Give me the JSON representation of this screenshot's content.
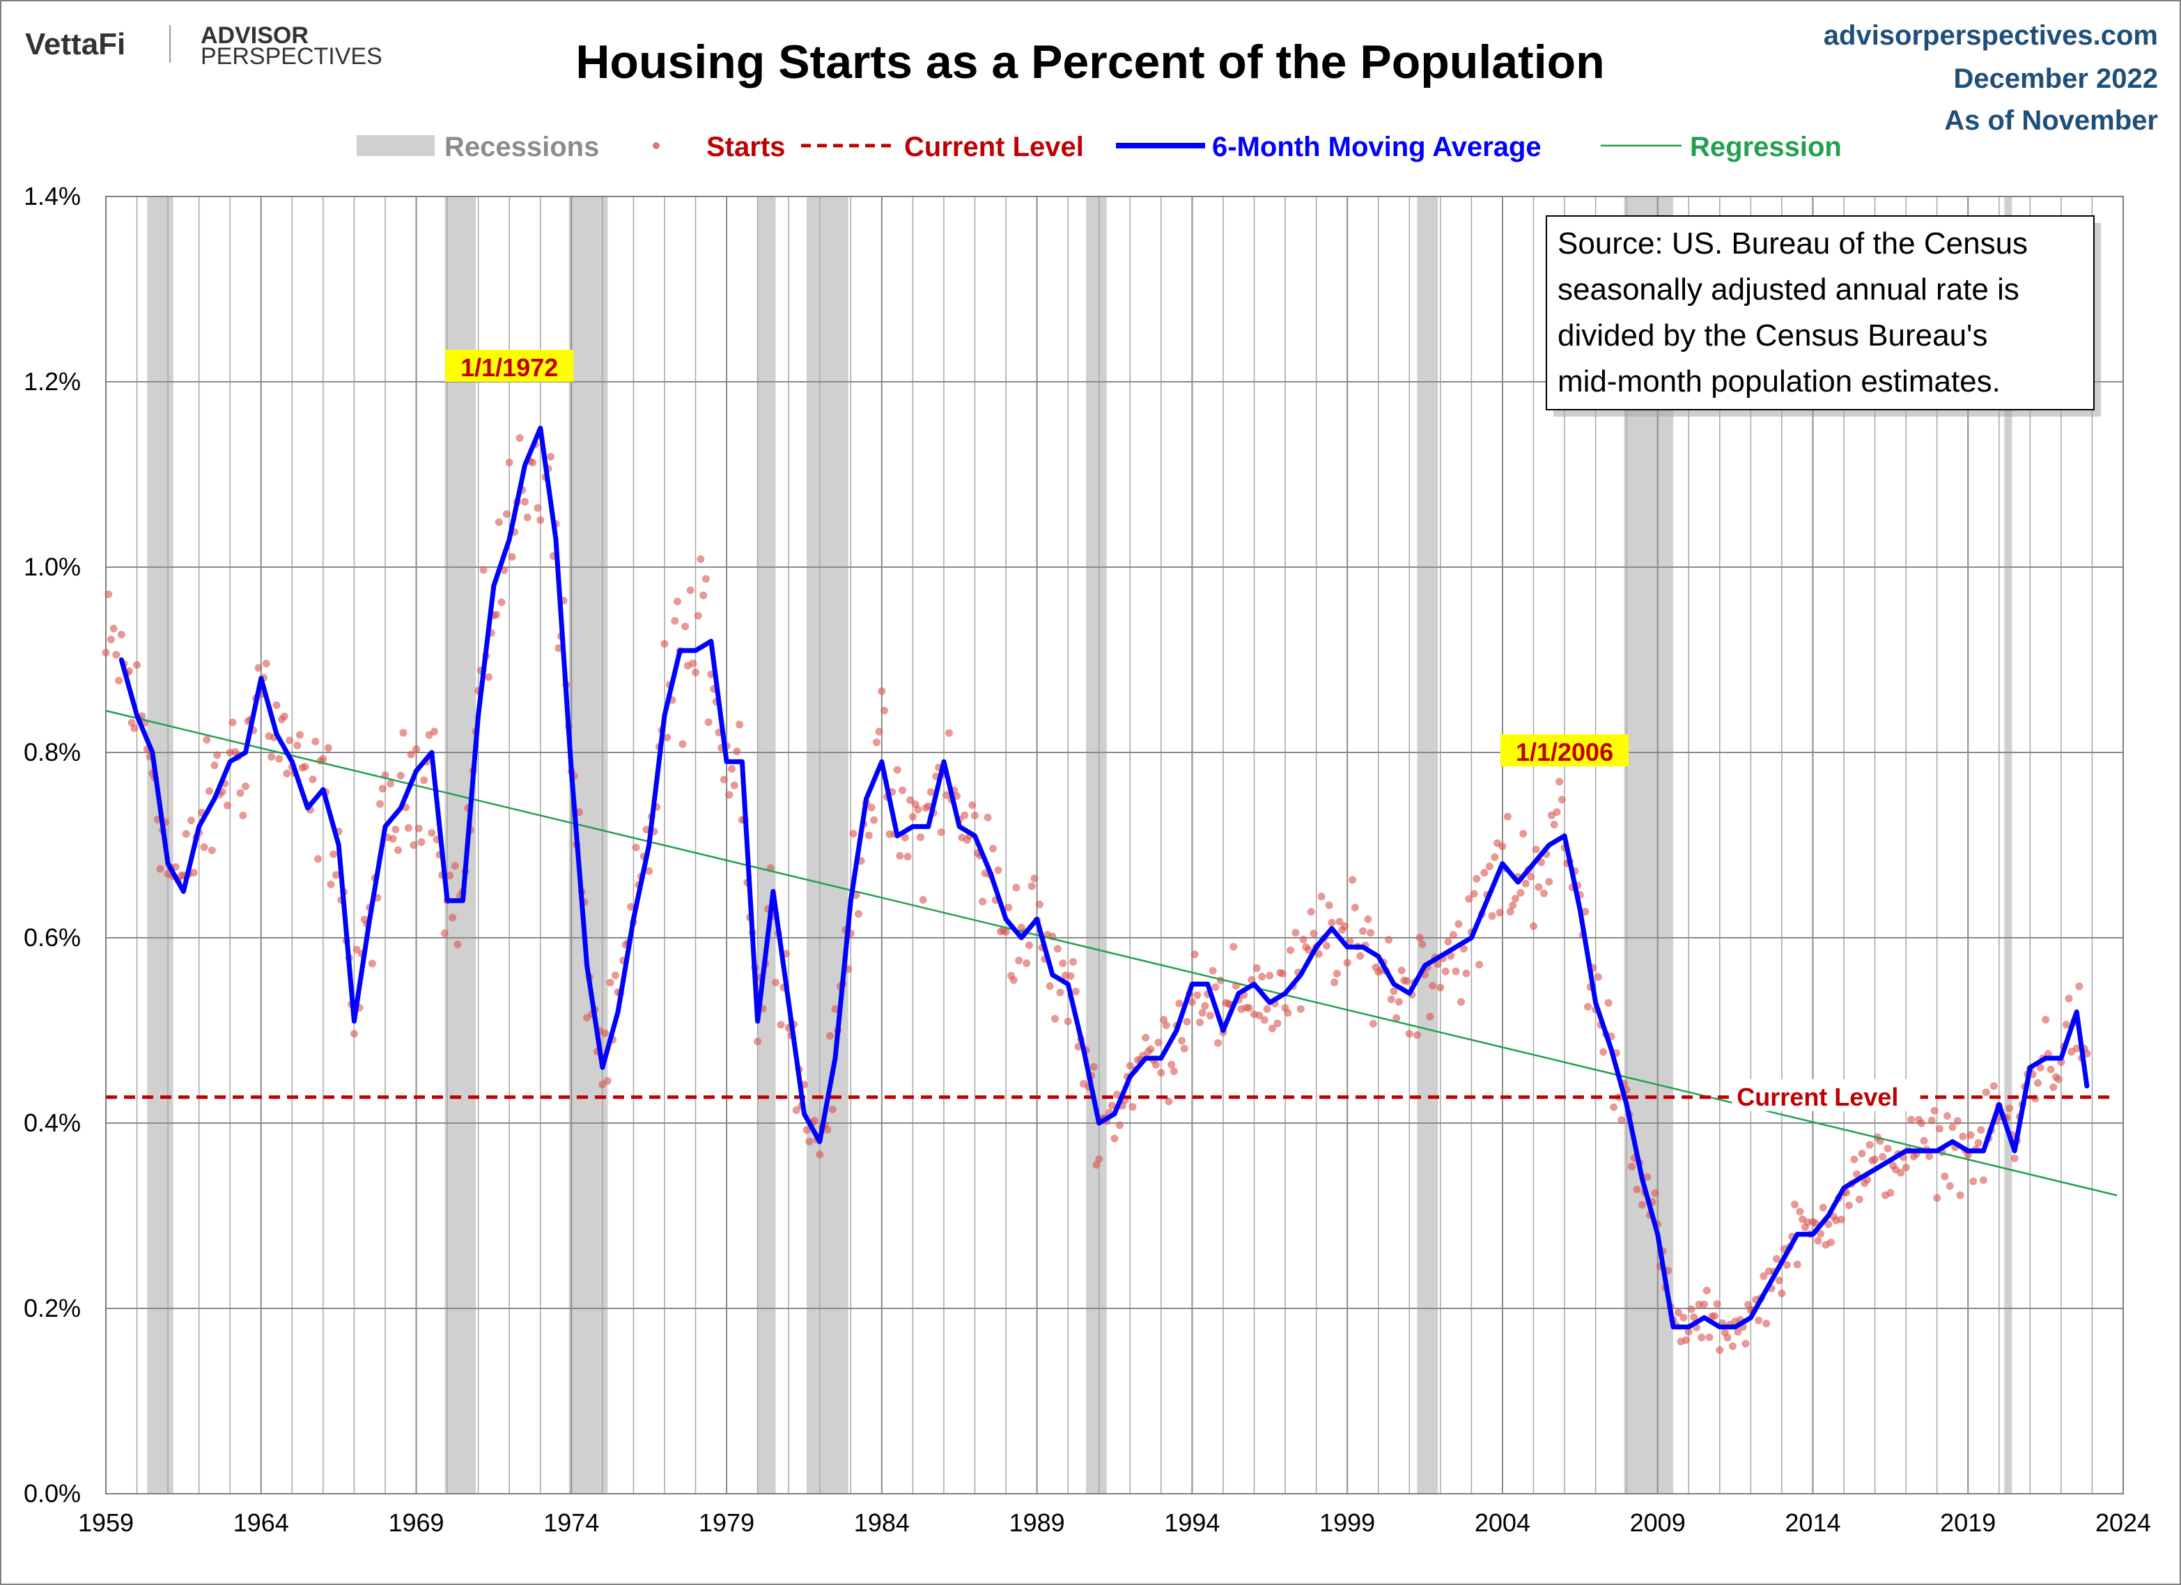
{
  "header": {
    "logo_primary": "VettaFi",
    "logo_secondary_1": "ADVISOR",
    "logo_secondary_2": "PERSPECTIVES",
    "site": "advisorperspectives.com",
    "date": "December 2022",
    "as_of": "As of November"
  },
  "chart_data": {
    "type": "scatter",
    "title": "Housing Starts as a Percent of the Population",
    "xlabel": "",
    "ylabel": "",
    "xlim": [
      1959,
      2024
    ],
    "ylim": [
      0,
      1.4
    ],
    "x_ticks": [
      "1959",
      "1964",
      "1969",
      "1974",
      "1979",
      "1984",
      "1989",
      "1994",
      "1999",
      "2004",
      "2009",
      "2014",
      "2019",
      "2024"
    ],
    "y_ticks": [
      "0.0%",
      "0.2%",
      "0.4%",
      "0.6%",
      "0.8%",
      "1.0%",
      "1.2%",
      "1.4%"
    ],
    "grid": true,
    "legend": {
      "position": "top",
      "items": [
        {
          "label": "Recessions",
          "color": "#d0d0d0",
          "text_color": "#8c8c8c",
          "kind": "band"
        },
        {
          "label": "Starts",
          "color": "#d9534f",
          "text_color": "#c00000",
          "kind": "dot"
        },
        {
          "label": "Current Level",
          "color": "#c00000",
          "text_color": "#c00000",
          "kind": "dash"
        },
        {
          "label": "6-Month Moving Average",
          "color": "#0000ff",
          "text_color": "#0000ff",
          "kind": "line"
        },
        {
          "label": "Regression",
          "color": "#22a050",
          "text_color": "#22a050",
          "kind": "thin"
        }
      ]
    },
    "recessions": [
      [
        1960.33,
        1961.17
      ],
      [
        1969.92,
        1970.92
      ],
      [
        1973.92,
        1975.17
      ],
      [
        1980.0,
        1980.58
      ],
      [
        1981.58,
        1982.92
      ],
      [
        1990.58,
        1991.25
      ],
      [
        2001.25,
        2001.92
      ],
      [
        2007.92,
        2009.5
      ],
      [
        2020.17,
        2020.42
      ]
    ],
    "moving_average": {
      "name": "6-Month Moving Average",
      "color": "#0000ff",
      "x": [
        1959.5,
        1960.0,
        1960.5,
        1961.0,
        1961.5,
        1962.0,
        1962.5,
        1963.0,
        1963.5,
        1964.0,
        1964.5,
        1965.0,
        1965.5,
        1966.0,
        1966.5,
        1967.0,
        1967.5,
        1968.0,
        1968.5,
        1969.0,
        1969.5,
        1970.0,
        1970.5,
        1971.0,
        1971.5,
        1972.0,
        1972.5,
        1973.0,
        1973.5,
        1974.0,
        1974.5,
        1975.0,
        1975.5,
        1976.0,
        1976.5,
        1977.0,
        1977.5,
        1978.0,
        1978.5,
        1979.0,
        1979.5,
        1980.0,
        1980.5,
        1981.0,
        1981.5,
        1982.0,
        1982.5,
        1983.0,
        1983.5,
        1984.0,
        1984.5,
        1985.0,
        1985.5,
        1986.0,
        1986.5,
        1987.0,
        1987.5,
        1988.0,
        1988.5,
        1989.0,
        1989.5,
        1990.0,
        1990.5,
        1991.0,
        1991.5,
        1992.0,
        1992.5,
        1993.0,
        1993.5,
        1994.0,
        1994.5,
        1995.0,
        1995.5,
        1996.0,
        1996.5,
        1997.0,
        1997.5,
        1998.0,
        1998.5,
        1999.0,
        1999.5,
        2000.0,
        2000.5,
        2001.0,
        2001.5,
        2002.0,
        2002.5,
        2003.0,
        2003.5,
        2004.0,
        2004.5,
        2005.0,
        2005.5,
        2006.0,
        2006.5,
        2007.0,
        2007.5,
        2008.0,
        2008.5,
        2009.0,
        2009.5,
        2010.0,
        2010.5,
        2011.0,
        2011.5,
        2012.0,
        2012.5,
        2013.0,
        2013.5,
        2014.0,
        2014.5,
        2015.0,
        2015.5,
        2016.0,
        2016.5,
        2017.0,
        2017.5,
        2018.0,
        2018.5,
        2019.0,
        2019.5,
        2020.0,
        2020.5,
        2021.0,
        2021.5,
        2022.0,
        2022.5,
        2022.83
      ],
      "y": [
        0.9,
        0.84,
        0.8,
        0.68,
        0.65,
        0.72,
        0.75,
        0.79,
        0.8,
        0.88,
        0.82,
        0.79,
        0.74,
        0.76,
        0.7,
        0.51,
        0.62,
        0.72,
        0.74,
        0.78,
        0.8,
        0.64,
        0.64,
        0.84,
        0.98,
        1.03,
        1.11,
        1.15,
        1.03,
        0.78,
        0.57,
        0.46,
        0.52,
        0.62,
        0.7,
        0.84,
        0.91,
        0.91,
        0.92,
        0.79,
        0.79,
        0.51,
        0.65,
        0.53,
        0.41,
        0.38,
        0.47,
        0.64,
        0.75,
        0.79,
        0.71,
        0.72,
        0.72,
        0.79,
        0.72,
        0.71,
        0.67,
        0.62,
        0.6,
        0.62,
        0.56,
        0.55,
        0.48,
        0.4,
        0.41,
        0.45,
        0.47,
        0.47,
        0.5,
        0.55,
        0.55,
        0.5,
        0.54,
        0.55,
        0.53,
        0.54,
        0.56,
        0.59,
        0.61,
        0.59,
        0.59,
        0.58,
        0.55,
        0.54,
        0.57,
        0.58,
        0.59,
        0.6,
        0.64,
        0.68,
        0.66,
        0.68,
        0.7,
        0.71,
        0.63,
        0.53,
        0.48,
        0.42,
        0.34,
        0.28,
        0.18,
        0.18,
        0.19,
        0.18,
        0.18,
        0.19,
        0.22,
        0.25,
        0.28,
        0.28,
        0.3,
        0.33,
        0.34,
        0.35,
        0.36,
        0.37,
        0.37,
        0.37,
        0.38,
        0.37,
        0.37,
        0.42,
        0.37,
        0.46,
        0.47,
        0.47,
        0.52,
        0.44
      ]
    },
    "regression": {
      "name": "Regression",
      "color": "#22a050",
      "x": [
        1959.0,
        2023.8
      ],
      "y": [
        0.845,
        0.322
      ]
    },
    "current_level": {
      "name": "Current Level",
      "value": 0.428,
      "label": "Current Level",
      "color": "#c00000"
    },
    "starts_color": "#d9534f",
    "annotations": [
      {
        "text": "1/1/1972",
        "x": 1972.0,
        "y": 1.215
      },
      {
        "text": "1/1/2006",
        "x": 2006.0,
        "y": 0.8
      }
    ],
    "source_note": [
      "Source: US. Bureau of the Census",
      "seasonally adjusted annual rate is",
      "divided by the Census Bureau's",
      "mid-month population estimates."
    ]
  }
}
